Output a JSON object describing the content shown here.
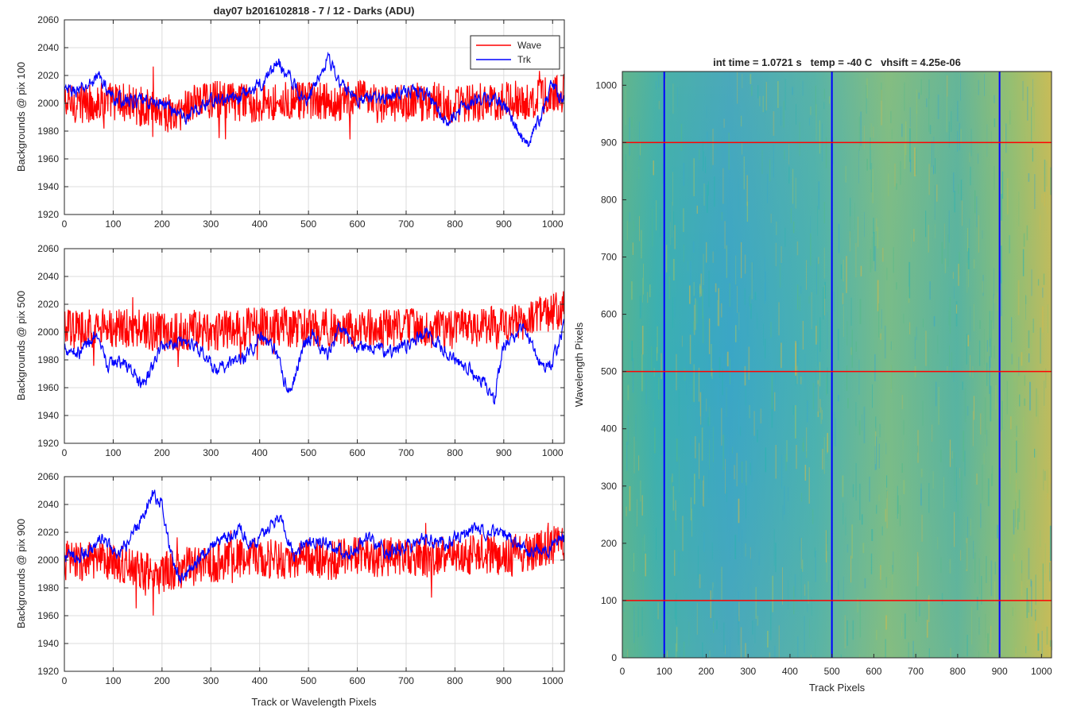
{
  "figure_title": "day07 b2016102818 - 7 / 12 - Darks (ADU)",
  "colors": {
    "wave": "#ff0000",
    "trk": "#0000ff",
    "grid": "#dcdcdc",
    "axis": "#262626"
  },
  "legend": {
    "position": "top-right",
    "entries": [
      "Wave",
      "Trk"
    ]
  },
  "chart_data": [
    {
      "type": "line",
      "title": "day07 b2016102818 - 7 / 12 - Darks (ADU)",
      "ylabel": "Backgrounds @ pix 100",
      "xlabel": "",
      "xlim": [
        0,
        1024
      ],
      "ylim": [
        1920,
        2060
      ],
      "xticks": [
        0,
        100,
        200,
        300,
        400,
        500,
        600,
        700,
        800,
        900,
        1000
      ],
      "yticks": [
        1920,
        1940,
        1960,
        1980,
        2000,
        2020,
        2040,
        2060
      ],
      "grid": true,
      "legend": "top-right",
      "series": [
        {
          "name": "Wave",
          "x": [
            0,
            50,
            100,
            150,
            200,
            230,
            250,
            300,
            350,
            400,
            450,
            500,
            550,
            600,
            650,
            700,
            750,
            800,
            850,
            900,
            950,
            1000,
            1024
          ],
          "y": [
            2000,
            2000,
            2002,
            1998,
            1995,
            1990,
            1999,
            2003,
            2001,
            2000,
            2002,
            2001,
            2000,
            2003,
            1999,
            2000,
            2002,
            1998,
            2000,
            2003,
            2002,
            2006,
            2008
          ],
          "noise": 9
        },
        {
          "name": "Trk",
          "x": [
            0,
            40,
            70,
            100,
            150,
            200,
            250,
            300,
            350,
            400,
            440,
            480,
            500,
            540,
            560,
            600,
            650,
            700,
            750,
            790,
            820,
            860,
            900,
            930,
            950,
            980,
            1000,
            1024
          ],
          "y": [
            2008,
            2010,
            2020,
            2003,
            2001,
            2000,
            1990,
            2002,
            2003,
            2013,
            2030,
            2008,
            2003,
            2035,
            2015,
            2004,
            2003,
            2010,
            2004,
            1985,
            2000,
            2003,
            2000,
            1980,
            1968,
            1995,
            2015,
            2000
          ],
          "noise": 4
        }
      ]
    },
    {
      "type": "line",
      "ylabel": "Backgrounds @ pix 500",
      "xlabel": "",
      "xlim": [
        0,
        1024
      ],
      "ylim": [
        1920,
        2060
      ],
      "xticks": [
        0,
        100,
        200,
        300,
        400,
        500,
        600,
        700,
        800,
        900,
        1000
      ],
      "yticks": [
        1920,
        1940,
        1960,
        1980,
        2000,
        2020,
        2040,
        2060
      ],
      "grid": true,
      "series": [
        {
          "name": "Wave",
          "x": [
            0,
            100,
            200,
            300,
            400,
            500,
            600,
            700,
            800,
            900,
            950,
            1000,
            1024
          ],
          "y": [
            2002,
            2003,
            2000,
            2001,
            2004,
            2003,
            2002,
            2003,
            2002,
            2005,
            2010,
            2014,
            2016
          ],
          "noise": 9
        },
        {
          "name": "Trk",
          "x": [
            0,
            30,
            60,
            90,
            110,
            140,
            160,
            200,
            240,
            280,
            310,
            340,
            370,
            400,
            420,
            440,
            460,
            490,
            510,
            540,
            560,
            600,
            640,
            660,
            700,
            740,
            780,
            820,
            860,
            880,
            900,
            940,
            980,
            1000,
            1024
          ],
          "y": [
            1990,
            1985,
            1998,
            1975,
            1980,
            1972,
            1960,
            1990,
            1995,
            1988,
            1970,
            1978,
            1982,
            1997,
            1993,
            1978,
            1955,
            1990,
            2000,
            1980,
            2003,
            1990,
            1990,
            1985,
            1990,
            2000,
            1985,
            1975,
            1965,
            1950,
            1990,
            2005,
            1975,
            1980,
            2003
          ],
          "noise": 4
        }
      ]
    },
    {
      "type": "line",
      "ylabel": "Backgrounds @ pix 900",
      "xlabel": "Track or Wavelength Pixels",
      "xlim": [
        0,
        1024
      ],
      "ylim": [
        1920,
        2060
      ],
      "xticks": [
        0,
        100,
        200,
        300,
        400,
        500,
        600,
        700,
        800,
        900,
        1000
      ],
      "yticks": [
        1920,
        1940,
        1960,
        1980,
        2000,
        2020,
        2040,
        2060
      ],
      "grid": true,
      "series": [
        {
          "name": "Wave",
          "x": [
            0,
            100,
            150,
            190,
            210,
            250,
            300,
            350,
            400,
            450,
            500,
            550,
            600,
            650,
            700,
            750,
            800,
            850,
            900,
            950,
            1000,
            1024
          ],
          "y": [
            2000,
            1998,
            1995,
            1988,
            1992,
            1995,
            1997,
            2002,
            2002,
            1999,
            2001,
            2000,
            2003,
            2002,
            2004,
            2000,
            2001,
            2005,
            2003,
            2006,
            2010,
            2012
          ],
          "noise": 9
        },
        {
          "name": "Trk",
          "x": [
            0,
            40,
            80,
            110,
            140,
            160,
            180,
            200,
            220,
            240,
            270,
            300,
            330,
            360,
            380,
            410,
            440,
            470,
            500,
            540,
            580,
            620,
            660,
            700,
            740,
            780,
            820,
            850,
            900,
            950,
            1000,
            1024
          ],
          "y": [
            2002,
            2004,
            2015,
            2002,
            2018,
            2032,
            2048,
            2040,
            2000,
            1985,
            2000,
            2010,
            2015,
            2022,
            2010,
            2020,
            2032,
            2005,
            2015,
            2012,
            2004,
            2015,
            2005,
            2010,
            2015,
            2012,
            2018,
            2022,
            2018,
            2005,
            2010,
            2015
          ],
          "noise": 4
        }
      ]
    },
    {
      "type": "heatmap",
      "title": "int time = 1.0721 s   temp = -40 C   vhsift = 4.25e-06",
      "xlabel": "Track Pixels",
      "ylabel": "Wavelength Pixels",
      "xlim": [
        0,
        1024
      ],
      "ylim": [
        0,
        1024
      ],
      "xticks": [
        0,
        100,
        200,
        300,
        400,
        500,
        600,
        700,
        800,
        900,
        1000
      ],
      "yticks": [
        0,
        100,
        200,
        300,
        400,
        500,
        600,
        700,
        800,
        900,
        1000
      ],
      "colormap": [
        "#3aa8c8",
        "#2bb3b0",
        "#55ba8a",
        "#9cc26a",
        "#d4b94a"
      ],
      "overlay_lines": {
        "vertical_at_x": [
          100,
          500,
          900
        ],
        "vertical_color": "#0000ff",
        "horizontal_at_y": [
          100,
          500,
          900
        ],
        "horizontal_color": "#ff0000"
      }
    }
  ]
}
